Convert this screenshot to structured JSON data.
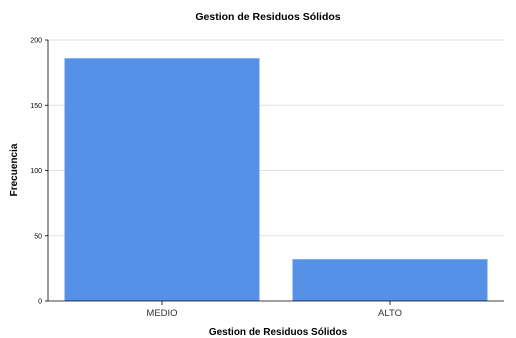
{
  "chart_data": {
    "type": "bar",
    "title": "Gestion de Residuos Sólidos",
    "xlabel": "Gestion de Residuos Sólidos",
    "ylabel": "Frecuencia",
    "categories": [
      "MEDIO",
      "ALTO"
    ],
    "values": [
      186,
      32
    ],
    "ylim": [
      0,
      200
    ],
    "yticks": [
      "0",
      "50",
      "100",
      "150",
      "200"
    ],
    "grid": true,
    "legend": "none",
    "bar_color": "#5591e6",
    "grid_color": "#d9d9d9"
  }
}
